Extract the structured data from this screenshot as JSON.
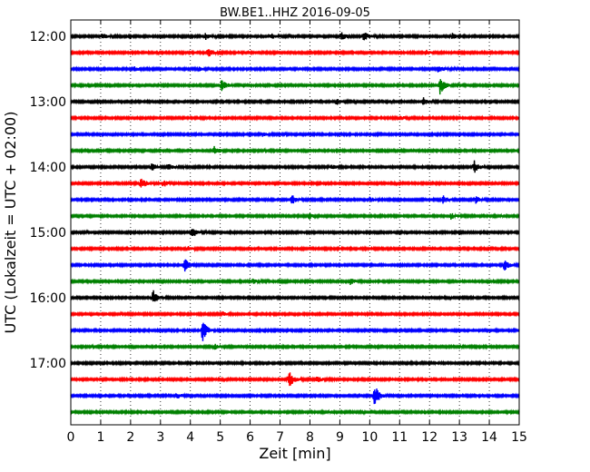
{
  "chart_data": {
    "type": "line",
    "title": "BW.BE1..HHZ 2016-09-05",
    "xlabel": "Zeit  [min]",
    "ylabel": "UTC (Lokalzeit = UTC + 02:00)",
    "xlim": [
      0,
      15
    ],
    "x_ticks": [
      "0",
      "1",
      "2",
      "3",
      "4",
      "5",
      "6",
      "7",
      "8",
      "9",
      "10",
      "11",
      "12",
      "13",
      "14",
      "15"
    ],
    "y_tick_labels": [
      "12:00",
      "13:00",
      "14:00",
      "15:00",
      "16:00",
      "17:00"
    ],
    "grid": "vertical dotted",
    "trace_interval_minutes": 15,
    "start_time": "12:00",
    "colors": [
      "#000000",
      "#ff0000",
      "#0000ff",
      "#008000"
    ],
    "traces": [
      {
        "start": "12:00",
        "events": [
          [
            1.05,
            0.25
          ],
          [
            4.5,
            0.25
          ],
          [
            6.7,
            0.2
          ],
          [
            9.05,
            0.3
          ],
          [
            9.8,
            0.35
          ],
          [
            12.75,
            0.25
          ]
        ]
      },
      {
        "start": "12:15",
        "events": [
          [
            4.6,
            0.4
          ],
          [
            11.9,
            0.15
          ]
        ]
      },
      {
        "start": "12:30",
        "events": [
          [
            2.1,
            0.2
          ],
          [
            4.3,
            0.15
          ],
          [
            12.3,
            0.3
          ]
        ]
      },
      {
        "start": "12:45",
        "events": [
          [
            5.05,
            0.5
          ],
          [
            12.35,
            0.7
          ]
        ]
      },
      {
        "start": "13:00",
        "events": [
          [
            8.9,
            0.2
          ],
          [
            11.8,
            0.3
          ]
        ]
      },
      {
        "start": "13:15",
        "events": [
          [
            11.0,
            0.2
          ]
        ]
      },
      {
        "start": "13:30",
        "events": [
          [
            6.4,
            0.15
          ]
        ]
      },
      {
        "start": "13:45",
        "events": [
          [
            4.8,
            0.35
          ]
        ]
      },
      {
        "start": "14:00",
        "events": [
          [
            2.7,
            0.3
          ],
          [
            3.25,
            0.25
          ],
          [
            8.7,
            0.2
          ],
          [
            13.5,
            0.45
          ]
        ]
      },
      {
        "start": "14:15",
        "events": [
          [
            2.35,
            0.45
          ],
          [
            3.1,
            0.25
          ]
        ]
      },
      {
        "start": "14:30",
        "events": [
          [
            7.4,
            0.35
          ],
          [
            10.0,
            0.2
          ],
          [
            12.45,
            0.3
          ],
          [
            13.55,
            0.25
          ]
        ]
      },
      {
        "start": "14:45",
        "events": [
          [
            7.95,
            0.25
          ],
          [
            12.7,
            0.25
          ]
        ]
      },
      {
        "start": "15:00",
        "events": [
          [
            4.05,
            0.45
          ]
        ]
      },
      {
        "start": "15:15",
        "events": [
          [
            3.9,
            0.2
          ]
        ]
      },
      {
        "start": "15:30",
        "events": [
          [
            3.8,
            0.6
          ],
          [
            14.5,
            0.45
          ]
        ]
      },
      {
        "start": "15:45",
        "events": [
          [
            6.1,
            0.15
          ],
          [
            9.35,
            0.25
          ]
        ]
      },
      {
        "start": "16:00",
        "events": [
          [
            2.75,
            0.6
          ]
        ]
      },
      {
        "start": "16:15",
        "events": [
          [
            5.1,
            0.15
          ]
        ]
      },
      {
        "start": "16:30",
        "events": [
          [
            4.4,
            0.9
          ]
        ]
      },
      {
        "start": "16:45",
        "events": [
          [
            4.8,
            0.2
          ]
        ]
      },
      {
        "start": "17:00",
        "events": []
      },
      {
        "start": "17:15",
        "events": [
          [
            7.3,
            0.7
          ],
          [
            8.25,
            0.25
          ]
        ]
      },
      {
        "start": "17:30",
        "events": [
          [
            3.55,
            0.2
          ],
          [
            10.15,
            1.0
          ]
        ]
      },
      {
        "start": "17:45",
        "events": []
      }
    ]
  }
}
